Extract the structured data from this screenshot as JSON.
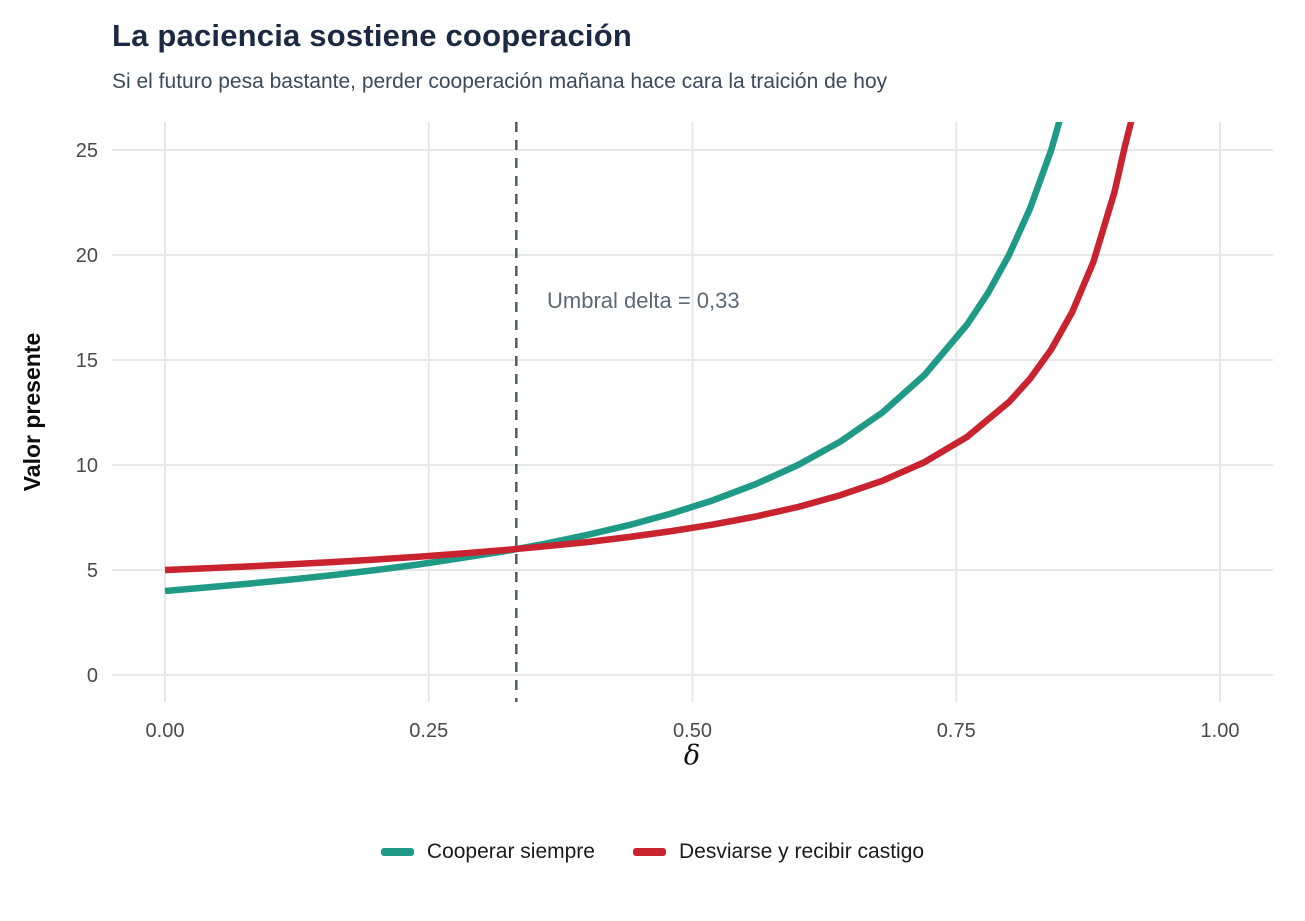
{
  "chart_data": {
    "type": "line",
    "title": "La paciencia sostiene cooperación",
    "subtitle": "Si el futuro pesa bastante, perder cooperación mañana hace cara la traición de hoy",
    "xlabel": "δ",
    "ylabel": "Valor presente",
    "xlim": [
      0,
      1.05
    ],
    "ylim": [
      0,
      26.4
    ],
    "grid": "major-only",
    "legend_position": "bottom",
    "x_ticks": {
      "values": [
        0,
        0.25,
        0.5,
        0.75,
        1.0
      ],
      "labels": [
        "0.00",
        "0.25",
        "0.50",
        "0.75",
        "1.00"
      ]
    },
    "y_ticks": {
      "values": [
        0,
        5,
        10,
        15,
        20,
        25
      ],
      "labels": [
        "0",
        "5",
        "10",
        "15",
        "20",
        "25"
      ]
    },
    "threshold": {
      "delta": 0.333,
      "label": "Umbral delta = 0,33",
      "line_color": "#4d5b69",
      "label_color": "#5c6874"
    },
    "series": [
      {
        "name": "Cooperar siempre",
        "color": "#1e9a86",
        "points": [
          [
            0,
            4
          ],
          [
            0.04,
            4.17
          ],
          [
            0.08,
            4.35
          ],
          [
            0.12,
            4.55
          ],
          [
            0.16,
            4.76
          ],
          [
            0.2,
            5
          ],
          [
            0.24,
            5.26
          ],
          [
            0.28,
            5.56
          ],
          [
            0.32,
            5.88
          ],
          [
            0.36,
            6.25
          ],
          [
            0.4,
            6.67
          ],
          [
            0.44,
            7.14
          ],
          [
            0.48,
            7.69
          ],
          [
            0.52,
            8.33
          ],
          [
            0.56,
            9.09
          ],
          [
            0.6,
            10
          ],
          [
            0.64,
            11.11
          ],
          [
            0.68,
            12.5
          ],
          [
            0.72,
            14.29
          ],
          [
            0.76,
            16.67
          ],
          [
            0.78,
            18.18
          ],
          [
            0.8,
            20
          ],
          [
            0.82,
            22.22
          ],
          [
            0.84,
            25
          ],
          [
            0.848,
            26.4
          ]
        ]
      },
      {
        "name": "Desviarse y recibir castigo",
        "color": "#c8232e",
        "points": [
          [
            0,
            5
          ],
          [
            0.04,
            5.08
          ],
          [
            0.08,
            5.17
          ],
          [
            0.12,
            5.27
          ],
          [
            0.16,
            5.38
          ],
          [
            0.2,
            5.5
          ],
          [
            0.24,
            5.63
          ],
          [
            0.28,
            5.78
          ],
          [
            0.32,
            5.94
          ],
          [
            0.36,
            6.13
          ],
          [
            0.4,
            6.33
          ],
          [
            0.44,
            6.57
          ],
          [
            0.48,
            6.85
          ],
          [
            0.52,
            7.17
          ],
          [
            0.56,
            7.55
          ],
          [
            0.6,
            8
          ],
          [
            0.64,
            8.56
          ],
          [
            0.68,
            9.25
          ],
          [
            0.72,
            10.14
          ],
          [
            0.76,
            11.33
          ],
          [
            0.8,
            13
          ],
          [
            0.82,
            14.11
          ],
          [
            0.84,
            15.5
          ],
          [
            0.86,
            17.29
          ],
          [
            0.88,
            19.67
          ],
          [
            0.9,
            23
          ],
          [
            0.91,
            25.22
          ],
          [
            0.916,
            26.4
          ]
        ]
      }
    ]
  },
  "legend": {
    "items": [
      {
        "label": "Cooperar siempre",
        "color": "#1e9a86"
      },
      {
        "label": "Desviarse y recibir castigo",
        "color": "#c8232e"
      }
    ]
  }
}
